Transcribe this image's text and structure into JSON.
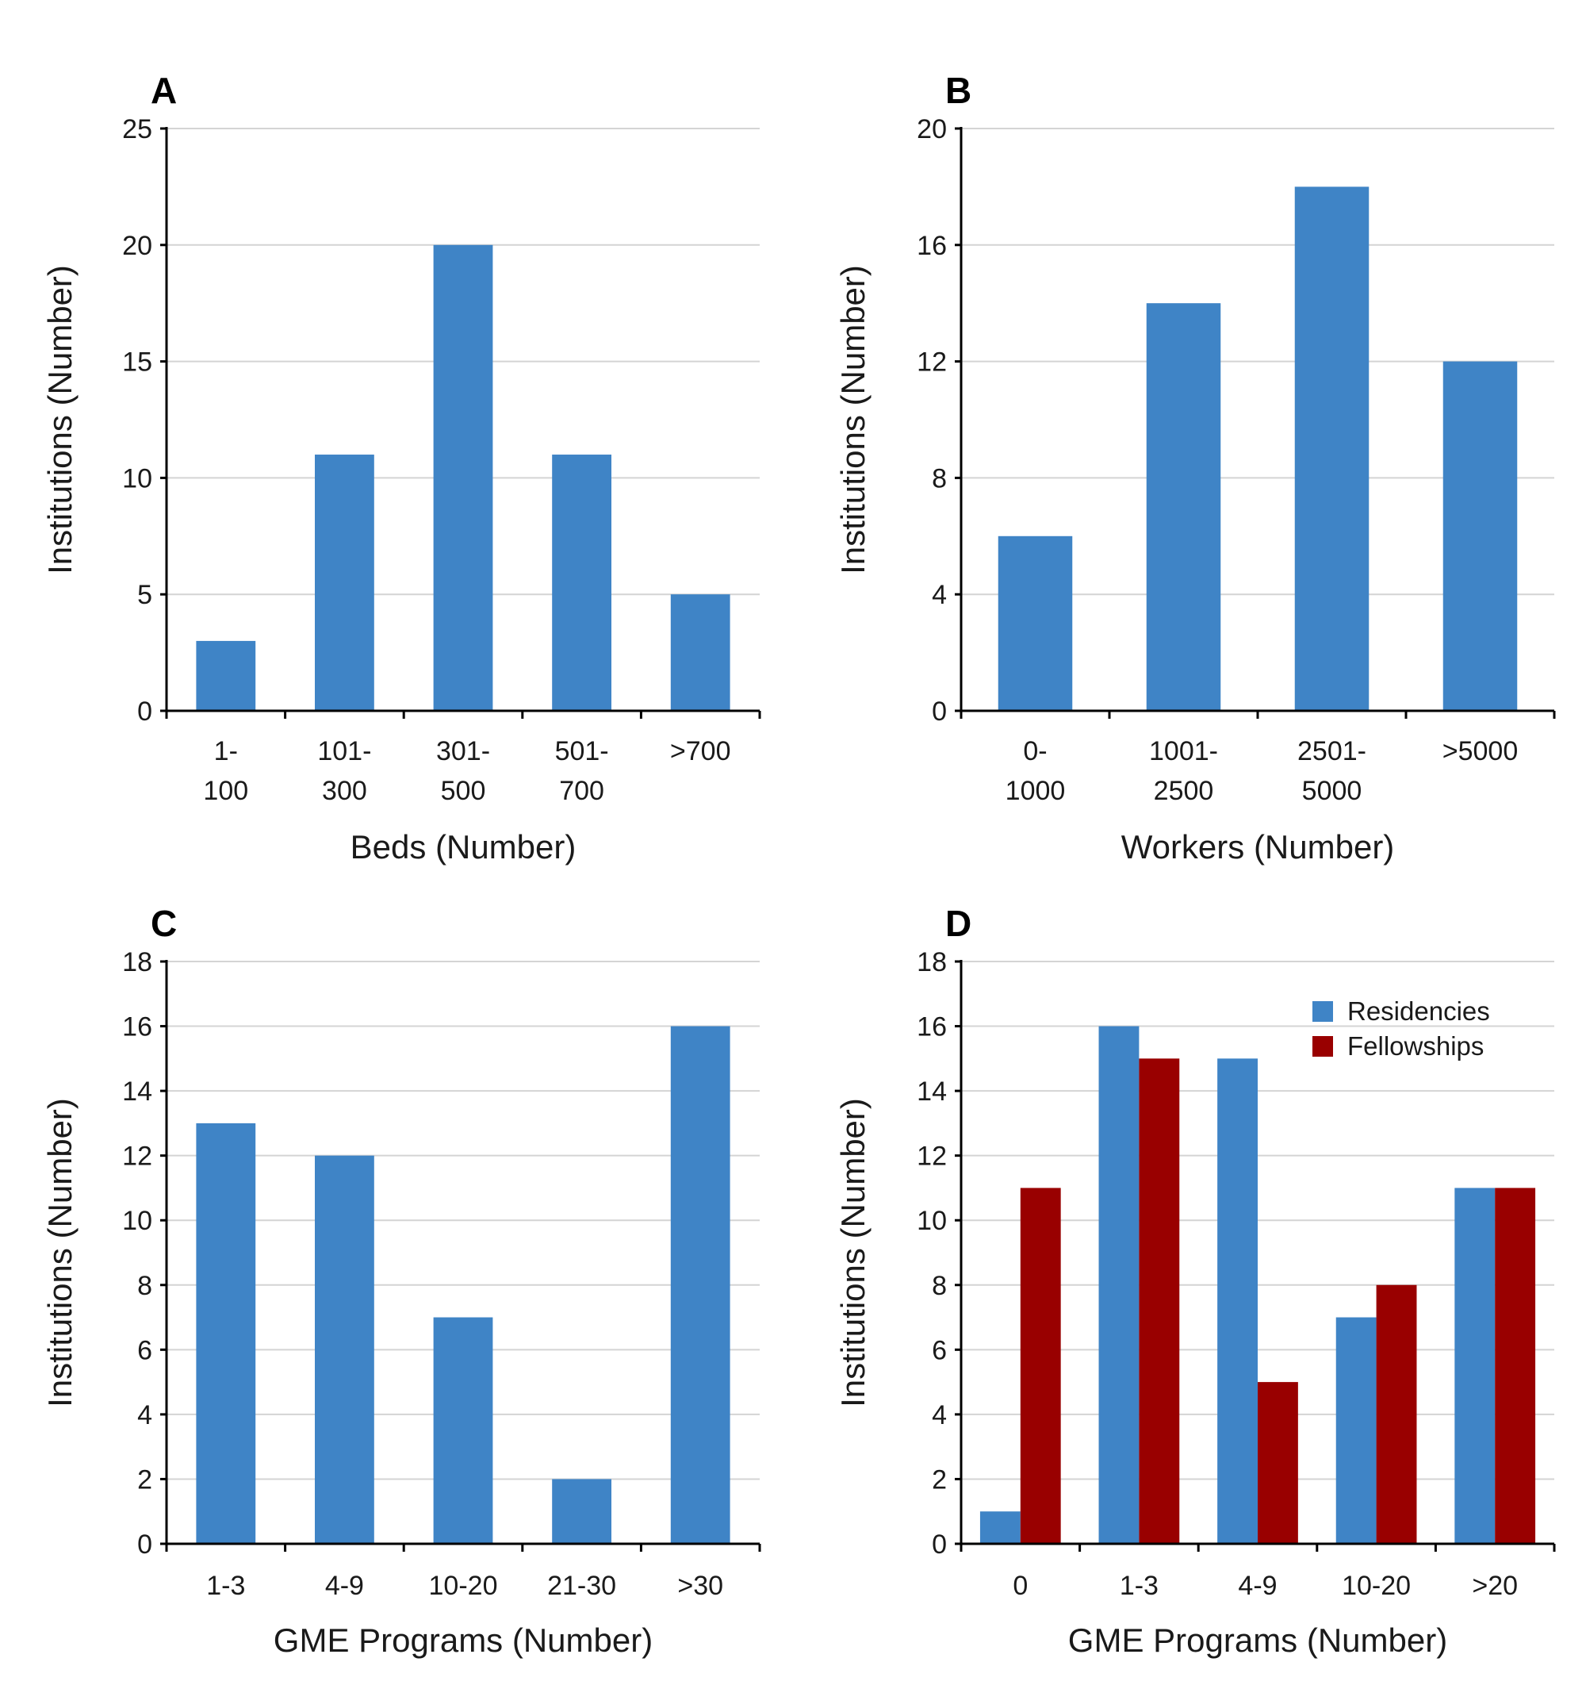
{
  "chart_data": [
    {
      "panel": "A",
      "type": "bar",
      "categories": [
        [
          "1-",
          "100"
        ],
        [
          "101-",
          "300"
        ],
        [
          "301-",
          "500"
        ],
        [
          "501-",
          "700"
        ],
        [
          ">700"
        ]
      ],
      "series": [
        {
          "values": [
            3,
            11,
            20,
            11,
            5
          ],
          "color": "#3f84c6"
        }
      ],
      "xlabel": "Beds (Number)",
      "ylabel": "Institutions (Number)",
      "ylim": [
        0,
        25
      ],
      "yticks": [
        "0",
        "5",
        "10",
        "15",
        "20",
        "25"
      ],
      "grid": true
    },
    {
      "panel": "B",
      "type": "bar",
      "categories": [
        [
          "0-",
          "1000"
        ],
        [
          "1001-",
          "2500"
        ],
        [
          "2501-",
          "5000"
        ],
        [
          ">5000"
        ]
      ],
      "series": [
        {
          "values": [
            6,
            14,
            18,
            12
          ],
          "color": "#3f84c6"
        }
      ],
      "xlabel": "Workers (Number)",
      "ylabel": "Institutions (Number)",
      "ylim": [
        0,
        20
      ],
      "yticks": [
        "0",
        "4",
        "8",
        "12",
        "16",
        "20"
      ],
      "grid": true
    },
    {
      "panel": "C",
      "type": "bar",
      "categories": [
        [
          "1-3"
        ],
        [
          "4-9"
        ],
        [
          "10-20"
        ],
        [
          "21-30"
        ],
        [
          ">30"
        ]
      ],
      "series": [
        {
          "values": [
            13,
            12,
            7,
            2,
            16
          ],
          "color": "#3f84c6"
        }
      ],
      "xlabel": "GME Programs (Number)",
      "ylabel": "Institutions (Number)",
      "ylim": [
        0,
        18
      ],
      "yticks": [
        "0",
        "2",
        "4",
        "6",
        "8",
        "10",
        "12",
        "14",
        "16",
        "18"
      ],
      "grid": true
    },
    {
      "panel": "D",
      "type": "bar",
      "categories": [
        [
          "0"
        ],
        [
          "1-3"
        ],
        [
          "4-9"
        ],
        [
          "10-20"
        ],
        [
          ">20"
        ]
      ],
      "series": [
        {
          "name": "Residencies",
          "values": [
            1,
            16,
            15,
            7,
            11
          ],
          "color": "#3f84c6"
        },
        {
          "name": "Fellowships",
          "values": [
            11,
            15,
            5,
            8,
            11
          ],
          "color": "#990000"
        }
      ],
      "xlabel": "GME Programs (Number)",
      "ylabel": "Institutions (Number)",
      "ylim": [
        0,
        18
      ],
      "yticks": [
        "0",
        "2",
        "4",
        "6",
        "8",
        "10",
        "12",
        "14",
        "16",
        "18"
      ],
      "grid": true,
      "legend": "top-right"
    }
  ]
}
